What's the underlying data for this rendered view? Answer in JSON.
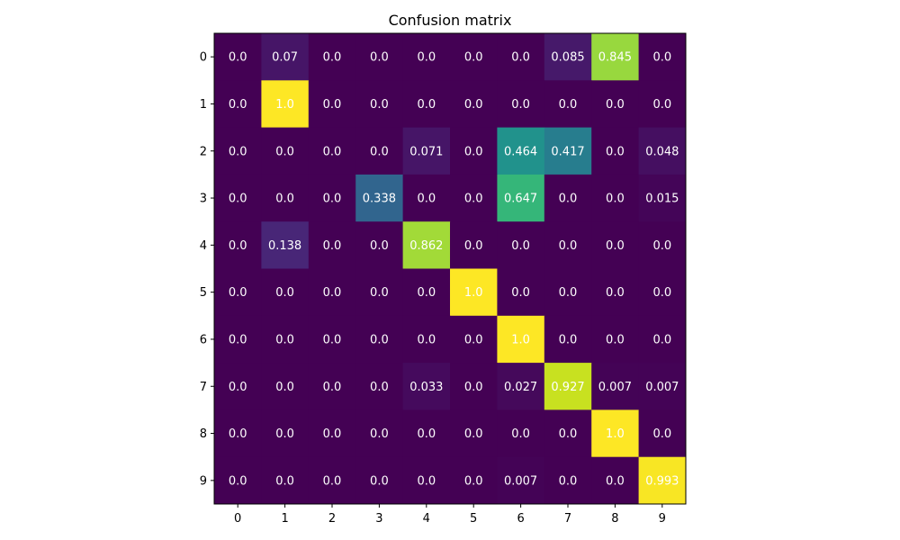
{
  "chart_data": {
    "type": "heatmap",
    "title": "Confusion matrix",
    "xlabel": "",
    "ylabel": "",
    "x_categories": [
      "0",
      "1",
      "2",
      "3",
      "4",
      "5",
      "6",
      "7",
      "8",
      "9"
    ],
    "y_categories": [
      "0",
      "1",
      "2",
      "3",
      "4",
      "5",
      "6",
      "7",
      "8",
      "9"
    ],
    "value_range": [
      0,
      1
    ],
    "colormap": "viridis",
    "matrix": [
      [
        0.0,
        0.07,
        0.0,
        0.0,
        0.0,
        0.0,
        0.0,
        0.085,
        0.845,
        0.0
      ],
      [
        0.0,
        1.0,
        0.0,
        0.0,
        0.0,
        0.0,
        0.0,
        0.0,
        0.0,
        0.0
      ],
      [
        0.0,
        0.0,
        0.0,
        0.0,
        0.071,
        0.0,
        0.464,
        0.417,
        0.0,
        0.048
      ],
      [
        0.0,
        0.0,
        0.0,
        0.338,
        0.0,
        0.0,
        0.647,
        0.0,
        0.0,
        0.015
      ],
      [
        0.0,
        0.138,
        0.0,
        0.0,
        0.862,
        0.0,
        0.0,
        0.0,
        0.0,
        0.0
      ],
      [
        0.0,
        0.0,
        0.0,
        0.0,
        0.0,
        1.0,
        0.0,
        0.0,
        0.0,
        0.0
      ],
      [
        0.0,
        0.0,
        0.0,
        0.0,
        0.0,
        0.0,
        1.0,
        0.0,
        0.0,
        0.0
      ],
      [
        0.0,
        0.0,
        0.0,
        0.0,
        0.033,
        0.0,
        0.027,
        0.927,
        0.007,
        0.007
      ],
      [
        0.0,
        0.0,
        0.0,
        0.0,
        0.0,
        0.0,
        0.0,
        0.0,
        1.0,
        0.0
      ],
      [
        0.0,
        0.0,
        0.0,
        0.0,
        0.0,
        0.0,
        0.007,
        0.0,
        0.0,
        0.993
      ]
    ],
    "cell_labels": [
      [
        "0.0",
        "0.07",
        "0.0",
        "0.0",
        "0.0",
        "0.0",
        "0.0",
        "0.085",
        "0.845",
        "0.0"
      ],
      [
        "0.0",
        "1.0",
        "0.0",
        "0.0",
        "0.0",
        "0.0",
        "0.0",
        "0.0",
        "0.0",
        "0.0"
      ],
      [
        "0.0",
        "0.0",
        "0.0",
        "0.0",
        "0.071",
        "0.0",
        "0.464",
        "0.417",
        "0.0",
        "0.048"
      ],
      [
        "0.0",
        "0.0",
        "0.0",
        "0.338",
        "0.0",
        "0.0",
        "0.647",
        "0.0",
        "0.0",
        "0.015"
      ],
      [
        "0.0",
        "0.138",
        "0.0",
        "0.0",
        "0.862",
        "0.0",
        "0.0",
        "0.0",
        "0.0",
        "0.0"
      ],
      [
        "0.0",
        "0.0",
        "0.0",
        "0.0",
        "0.0",
        "1.0",
        "0.0",
        "0.0",
        "0.0",
        "0.0"
      ],
      [
        "0.0",
        "0.0",
        "0.0",
        "0.0",
        "0.0",
        "0.0",
        "1.0",
        "0.0",
        "0.0",
        "0.0"
      ],
      [
        "0.0",
        "0.0",
        "0.0",
        "0.0",
        "0.033",
        "0.0",
        "0.027",
        "0.927",
        "0.007",
        "0.007"
      ],
      [
        "0.0",
        "0.0",
        "0.0",
        "0.0",
        "0.0",
        "0.0",
        "0.0",
        "0.0",
        "1.0",
        "0.0"
      ],
      [
        "0.0",
        "0.0",
        "0.0",
        "0.0",
        "0.0",
        "0.0",
        "0.007",
        "0.0",
        "0.0",
        "0.993"
      ]
    ],
    "cell_text_color": "#ffffff",
    "grid": false,
    "legend": "none"
  }
}
